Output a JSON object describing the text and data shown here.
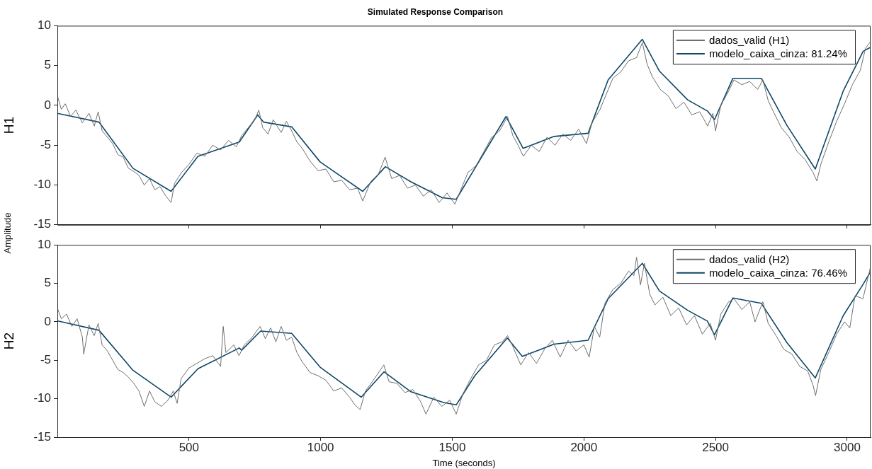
{
  "chart_data": [
    {
      "type": "line",
      "title": "Simulated Response Comparison",
      "ylabel": "H1",
      "annotations": [
        "Amplitude"
      ],
      "xlim": [
        0,
        3089
      ],
      "xticks": [
        500,
        1000,
        1500,
        2000,
        2500,
        3000
      ],
      "ylim": [
        -15,
        10
      ],
      "yticks": [
        -15,
        -10,
        -5,
        0,
        5,
        10
      ],
      "tick_labels": "y",
      "grid": false,
      "legend": "top right",
      "series": [
        {
          "name": "dados_valid (H1)",
          "color": "#6e6e6e",
          "x": [
            0,
            15,
            30,
            50,
            70,
            95,
            120,
            140,
            155,
            170,
            190,
            210,
            230,
            250,
            270,
            290,
            310,
            330,
            350,
            370,
            390,
            410,
            432,
            445,
            470,
            500,
            530,
            560,
            590,
            620,
            650,
            680,
            700,
            730,
            750,
            765,
            780,
            800,
            820,
            850,
            870,
            890,
            910,
            930,
            960,
            990,
            1020,
            1050,
            1080,
            1110,
            1140,
            1160,
            1190,
            1220,
            1245,
            1270,
            1300,
            1330,
            1360,
            1390,
            1420,
            1450,
            1480,
            1510,
            1530,
            1560,
            1590,
            1620,
            1650,
            1680,
            1710,
            1730,
            1750,
            1770,
            1800,
            1830,
            1860,
            1890,
            1920,
            1950,
            1980,
            2010,
            2030,
            2060,
            2090,
            2110,
            2140,
            2170,
            2200,
            2222,
            2240,
            2260,
            2290,
            2320,
            2350,
            2380,
            2410,
            2440,
            2470,
            2490,
            2500,
            2520,
            2550,
            2570,
            2600,
            2630,
            2660,
            2680,
            2700,
            2720,
            2750,
            2780,
            2810,
            2840,
            2870,
            2885,
            2900,
            2930,
            2960,
            2990,
            3020,
            3050,
            3070,
            3089
          ],
          "values": [
            1.2,
            -0.5,
            0.2,
            -1.4,
            -0.6,
            -2.2,
            -1.0,
            -2.6,
            -0.8,
            -3.2,
            -4.0,
            -4.8,
            -6.2,
            -6.5,
            -7.9,
            -8.3,
            -8.8,
            -10.0,
            -9.2,
            -10.6,
            -10.2,
            -11.3,
            -12.2,
            -9.8,
            -8.5,
            -7.4,
            -6.0,
            -6.4,
            -5.0,
            -5.6,
            -4.4,
            -5.2,
            -3.8,
            -2.6,
            -1.8,
            -0.6,
            -2.8,
            -3.6,
            -1.8,
            -3.4,
            -2.0,
            -3.2,
            -4.6,
            -5.4,
            -7.0,
            -8.2,
            -8.0,
            -9.6,
            -9.4,
            -10.6,
            -10.4,
            -12.0,
            -9.6,
            -8.6,
            -6.5,
            -9.2,
            -8.8,
            -10.4,
            -10.0,
            -11.4,
            -10.6,
            -12.2,
            -11.0,
            -12.4,
            -10.8,
            -8.4,
            -7.6,
            -5.8,
            -4.0,
            -3.2,
            -1.4,
            -3.8,
            -5.0,
            -6.4,
            -5.0,
            -5.8,
            -4.0,
            -5.0,
            -3.6,
            -4.4,
            -3.0,
            -4.8,
            -2.2,
            -0.6,
            1.8,
            3.4,
            4.2,
            5.6,
            6.0,
            7.9,
            5.2,
            3.6,
            2.0,
            1.2,
            -0.4,
            0.4,
            -1.2,
            -0.8,
            -2.6,
            -1.0,
            -3.2,
            0.0,
            1.8,
            3.2,
            2.6,
            3.0,
            2.0,
            3.2,
            0.6,
            -0.8,
            -2.8,
            -4.0,
            -5.8,
            -6.8,
            -8.4,
            -9.5,
            -7.4,
            -4.6,
            -2.0,
            0.2,
            2.6,
            4.4,
            7.2,
            8.0
          ]
        },
        {
          "name": "modelo_caixa_cinza: 81.24%",
          "color": "#0e4668",
          "x": [
            0,
            158,
            287,
            432,
            534,
            691,
            761,
            783,
            890,
            998,
            1160,
            1246,
            1343,
            1462,
            1515,
            1586,
            1704,
            1769,
            1887,
            2016,
            2092,
            2222,
            2287,
            2394,
            2469,
            2496,
            2566,
            2674,
            2771,
            2879,
            2985,
            3061,
            3089
          ],
          "values": [
            -1.0,
            -2.1,
            -7.9,
            -10.8,
            -6.4,
            -4.6,
            -1.2,
            -2.1,
            -2.7,
            -7.1,
            -10.8,
            -7.7,
            -9.6,
            -11.6,
            -11.8,
            -7.9,
            -1.4,
            -5.4,
            -3.9,
            -3.5,
            3.2,
            8.3,
            4.3,
            0.7,
            -0.7,
            -1.8,
            3.4,
            3.4,
            -2.5,
            -8.0,
            1.8,
            6.8,
            7.3
          ]
        }
      ]
    },
    {
      "type": "line",
      "ylabel": "H2",
      "xlabel": "Time (seconds)",
      "xlim": [
        0,
        3089
      ],
      "xticks": [
        500,
        1000,
        1500,
        2000,
        2500,
        3000
      ],
      "ylim": [
        -15,
        10
      ],
      "yticks": [
        -15,
        -10,
        -5,
        0,
        5,
        10
      ],
      "grid": false,
      "legend": "top right",
      "series": [
        {
          "name": "dados_valid (H2)",
          "color": "#6e6e6e",
          "x": [
            0,
            15,
            35,
            55,
            75,
            95,
            100,
            120,
            140,
            155,
            170,
            190,
            210,
            230,
            250,
            270,
            290,
            310,
            330,
            350,
            370,
            395,
            420,
            440,
            455,
            470,
            500,
            530,
            560,
            590,
            620,
            630,
            640,
            670,
            690,
            710,
            740,
            770,
            790,
            810,
            830,
            850,
            870,
            890,
            910,
            930,
            960,
            990,
            1020,
            1050,
            1080,
            1110,
            1130,
            1150,
            1170,
            1200,
            1240,
            1260,
            1290,
            1320,
            1350,
            1380,
            1400,
            1430,
            1460,
            1490,
            1515,
            1540,
            1570,
            1600,
            1630,
            1660,
            1690,
            1710,
            1730,
            1760,
            1790,
            1820,
            1850,
            1880,
            1910,
            1940,
            1970,
            2000,
            2020,
            2040,
            2060,
            2080,
            2110,
            2140,
            2170,
            2190,
            2200,
            2215,
            2230,
            2250,
            2270,
            2300,
            2330,
            2360,
            2390,
            2420,
            2450,
            2480,
            2500,
            2520,
            2550,
            2570,
            2600,
            2630,
            2650,
            2680,
            2700,
            2730,
            2760,
            2790,
            2820,
            2850,
            2870,
            2880,
            2900,
            2930,
            2960,
            2990,
            3010,
            3030,
            3060,
            3089
          ],
          "values": [
            1.8,
            0.4,
            1.0,
            -0.6,
            0.4,
            -2.0,
            -4.2,
            -0.4,
            -1.8,
            -0.2,
            -3.0,
            -3.8,
            -5.0,
            -6.2,
            -6.6,
            -7.2,
            -8.0,
            -9.0,
            -11.0,
            -9.0,
            -10.4,
            -11.0,
            -10.2,
            -9.0,
            -10.6,
            -7.4,
            -6.0,
            -5.4,
            -4.8,
            -4.4,
            -5.8,
            -0.6,
            -4.0,
            -3.0,
            -4.4,
            -3.0,
            -2.0,
            -0.6,
            -2.2,
            -0.8,
            -2.6,
            -0.6,
            -2.4,
            -2.0,
            -4.0,
            -5.2,
            -6.6,
            -7.0,
            -7.6,
            -9.0,
            -8.6,
            -9.8,
            -10.8,
            -11.4,
            -9.0,
            -7.6,
            -5.6,
            -7.8,
            -8.0,
            -9.2,
            -8.8,
            -10.4,
            -12.0,
            -9.8,
            -11.0,
            -10.2,
            -12.0,
            -9.4,
            -7.4,
            -5.6,
            -5.0,
            -3.0,
            -2.6,
            -1.8,
            -3.2,
            -5.6,
            -4.0,
            -5.4,
            -3.6,
            -2.4,
            -4.6,
            -2.4,
            -3.8,
            -3.0,
            -4.6,
            -0.6,
            -2.0,
            2.4,
            4.2,
            5.0,
            6.6,
            6.0,
            8.4,
            4.8,
            7.6,
            3.6,
            2.2,
            3.2,
            0.8,
            1.8,
            -0.4,
            0.8,
            -1.6,
            -0.2,
            -2.4,
            1.0,
            2.6,
            3.0,
            1.6,
            2.6,
            0.0,
            2.6,
            -0.2,
            -1.8,
            -3.6,
            -4.2,
            -5.8,
            -6.4,
            -8.2,
            -9.6,
            -6.2,
            -4.0,
            -1.6,
            0.0,
            -0.8,
            3.4,
            3.0,
            7.2
          ]
        },
        {
          "name": "modelo_caixa_cinza: 76.46%",
          "color": "#0e4668",
          "x": [
            2,
            158,
            287,
            432,
            534,
            691,
            700,
            772,
            890,
            998,
            1154,
            1241,
            1343,
            1467,
            1515,
            1586,
            1709,
            1766,
            1887,
            2016,
            2092,
            2222,
            2287,
            2394,
            2469,
            2496,
            2566,
            2674,
            2771,
            2879,
            2985,
            3061,
            3089
          ],
          "values": [
            0.1,
            -1.1,
            -6.3,
            -9.8,
            -6.1,
            -3.4,
            -3.7,
            -1.2,
            -1.5,
            -5.9,
            -9.8,
            -6.5,
            -9.1,
            -10.5,
            -10.8,
            -7.0,
            -2.1,
            -4.5,
            -2.9,
            -2.4,
            3.0,
            7.6,
            4.0,
            1.5,
            0.1,
            -1.7,
            3.1,
            2.4,
            -2.7,
            -7.3,
            0.8,
            4.9,
            6.5
          ]
        }
      ]
    }
  ]
}
